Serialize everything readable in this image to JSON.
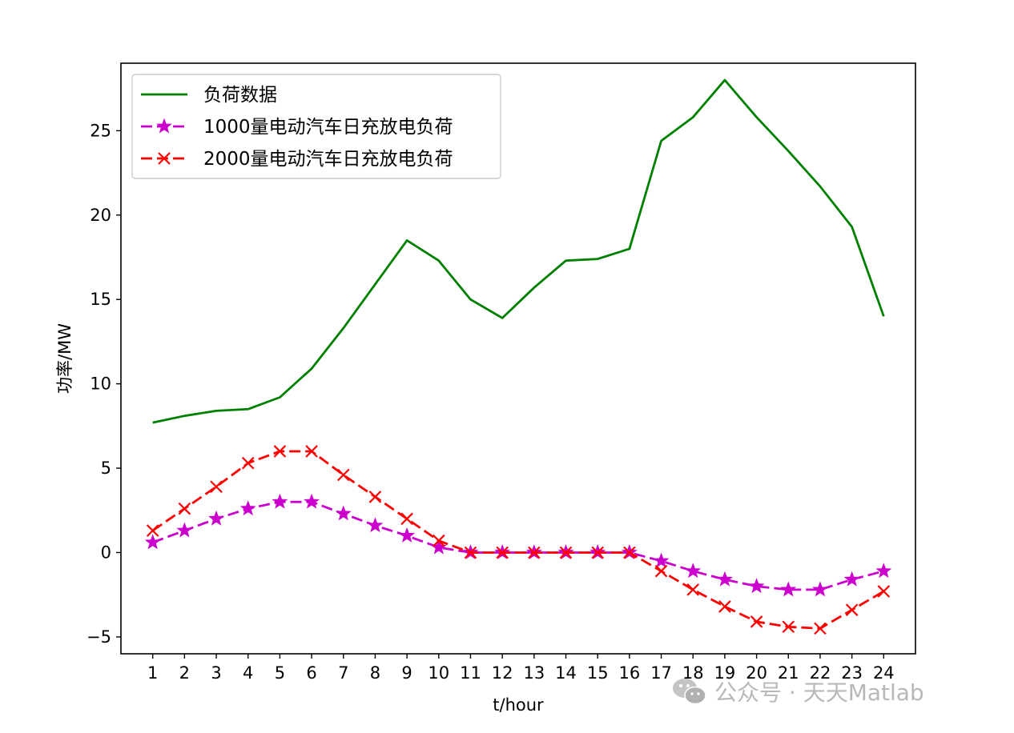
{
  "chart_data": {
    "type": "line",
    "title": "",
    "xlabel": "t/hour",
    "ylabel": "功率/MW",
    "categories": [
      "1",
      "2",
      "3",
      "4",
      "5",
      "6",
      "7",
      "8",
      "9",
      "10",
      "11",
      "12",
      "13",
      "14",
      "15",
      "16",
      "17",
      "18",
      "19",
      "20",
      "21",
      "22",
      "23",
      "24"
    ],
    "x": [
      1,
      2,
      3,
      4,
      5,
      6,
      7,
      8,
      9,
      10,
      11,
      12,
      13,
      14,
      15,
      16,
      17,
      18,
      19,
      20,
      21,
      22,
      23,
      24
    ],
    "xlim": [
      0,
      25
    ],
    "ylim": [
      -6,
      29
    ],
    "yticks": [
      -5,
      0,
      5,
      10,
      15,
      20,
      25
    ],
    "grid": false,
    "legend_position": "top-left",
    "series": [
      {
        "name": "负荷数据",
        "color": "#008000",
        "line_style": "solid",
        "marker": "none",
        "values": [
          7.7,
          8.1,
          8.4,
          8.5,
          9.2,
          10.9,
          13.3,
          15.9,
          18.5,
          17.3,
          15.0,
          13.9,
          15.7,
          17.3,
          17.4,
          18.0,
          24.4,
          25.8,
          28.0,
          25.8,
          23.8,
          21.7,
          19.3,
          14.0
        ]
      },
      {
        "name": "1000量电动汽车日充放电负荷",
        "color": "#cc00cc",
        "line_style": "dashed",
        "marker": "star",
        "values": [
          0.6,
          1.3,
          2.0,
          2.6,
          3.0,
          3.0,
          2.3,
          1.6,
          1.0,
          0.3,
          0.0,
          0.0,
          0.0,
          0.0,
          0.0,
          0.0,
          -0.5,
          -1.1,
          -1.6,
          -2.0,
          -2.2,
          -2.2,
          -1.6,
          -1.1
        ]
      },
      {
        "name": "2000量电动汽车日充放电负荷",
        "color": "#ff0000",
        "line_style": "dashed",
        "marker": "x",
        "values": [
          1.3,
          2.6,
          3.9,
          5.3,
          6.0,
          6.0,
          4.6,
          3.3,
          2.0,
          0.7,
          0.0,
          0.0,
          0.0,
          0.0,
          0.0,
          0.0,
          -1.1,
          -2.2,
          -3.2,
          -4.1,
          -4.4,
          -4.5,
          -3.4,
          -2.3
        ]
      }
    ]
  },
  "watermark": {
    "text": "公众号 · 天天Matlab",
    "icon": "wechat-icon"
  }
}
